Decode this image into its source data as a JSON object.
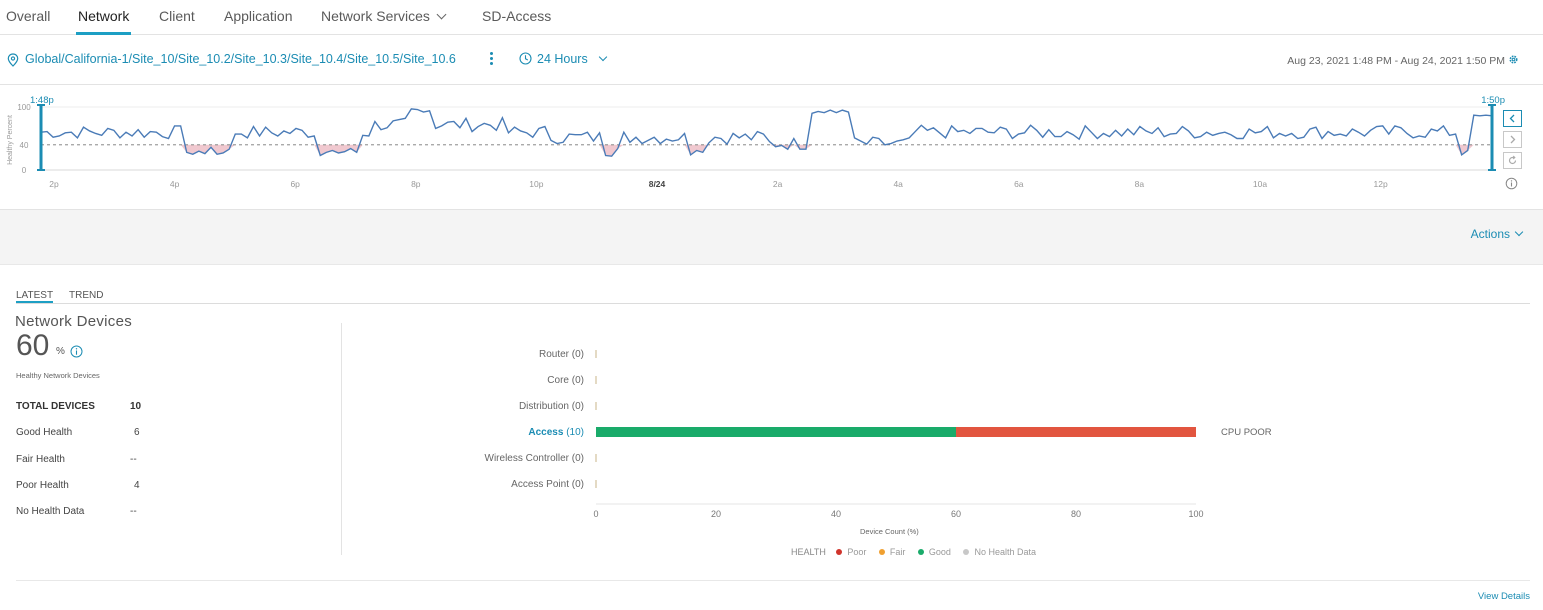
{
  "tabs": [
    {
      "label": "Overall"
    },
    {
      "label": "Network"
    },
    {
      "label": "Client"
    },
    {
      "label": "Application"
    },
    {
      "label": "Network Services"
    },
    {
      "label": "SD-Access"
    }
  ],
  "context": {
    "location": "Global/California-1/Site_10/Site_10.2/Site_10.3/Site_10.4/Site_10.5/Site_10.6",
    "time_range": "24 Hours",
    "date_range": "Aug 23, 2021 1:48 PM - Aug 24, 2021 1:50 PM"
  },
  "timeline": {
    "start_label": "1:48p",
    "end_label": "1:50p",
    "y_axis_label": "Healthy Percent",
    "y_ticks": [
      "100",
      "40",
      "0"
    ],
    "x_ticks": [
      "2p",
      "4p",
      "6p",
      "8p",
      "10p",
      "8/24",
      "2a",
      "4a",
      "6a",
      "8a",
      "10a",
      "12p"
    ],
    "threshold": 40,
    "line_color": "#4a7bb7",
    "poor_fill_color": "#f0c8cf"
  },
  "actions_label": "Actions",
  "subtabs": [
    {
      "label": "LATEST"
    },
    {
      "label": "TREND"
    }
  ],
  "summary": {
    "title": "Network Devices",
    "percent": "60",
    "percent_unit": "%",
    "subtitle": "Healthy Network Devices",
    "rows": [
      {
        "label": "TOTAL DEVICES",
        "value": "10"
      },
      {
        "label": "Good Health",
        "value": "6"
      },
      {
        "label": "Fair Health",
        "value": "--"
      },
      {
        "label": "Poor Health",
        "value": "4"
      },
      {
        "label": "No Health Data",
        "value": "--"
      }
    ]
  },
  "chart_data": {
    "type": "bar",
    "orientation": "horizontal",
    "stacked": true,
    "categories": [
      "Router",
      "Core",
      "Distribution",
      "Access",
      "Wireless Controller",
      "Access Point"
    ],
    "category_counts": [
      "(0)",
      "(0)",
      "(0)",
      "(10)",
      "(0)",
      "(0)"
    ],
    "highlighted_category": "Access",
    "series": [
      {
        "name": "Good",
        "color": "#1aab6a",
        "values": [
          0,
          0,
          0,
          60,
          0,
          0
        ]
      },
      {
        "name": "Poor",
        "color": "#e2553f",
        "values": [
          0,
          0,
          0,
          40,
          0,
          0
        ]
      }
    ],
    "x_ticks": [
      "0",
      "20",
      "40",
      "60",
      "80",
      "100"
    ],
    "xlim": [
      0,
      100
    ],
    "xlabel": "Device Count (%)",
    "bar_annotation": "CPU POOR",
    "legend": {
      "title": "HEALTH",
      "items": [
        {
          "label": "Poor",
          "color": "#d0342c"
        },
        {
          "label": "Fair",
          "color": "#f0a030"
        },
        {
          "label": "Good",
          "color": "#1aab6a"
        },
        {
          "label": "No Health Data",
          "color": "#c8c8c8"
        }
      ]
    }
  },
  "view_details_label": "View Details"
}
